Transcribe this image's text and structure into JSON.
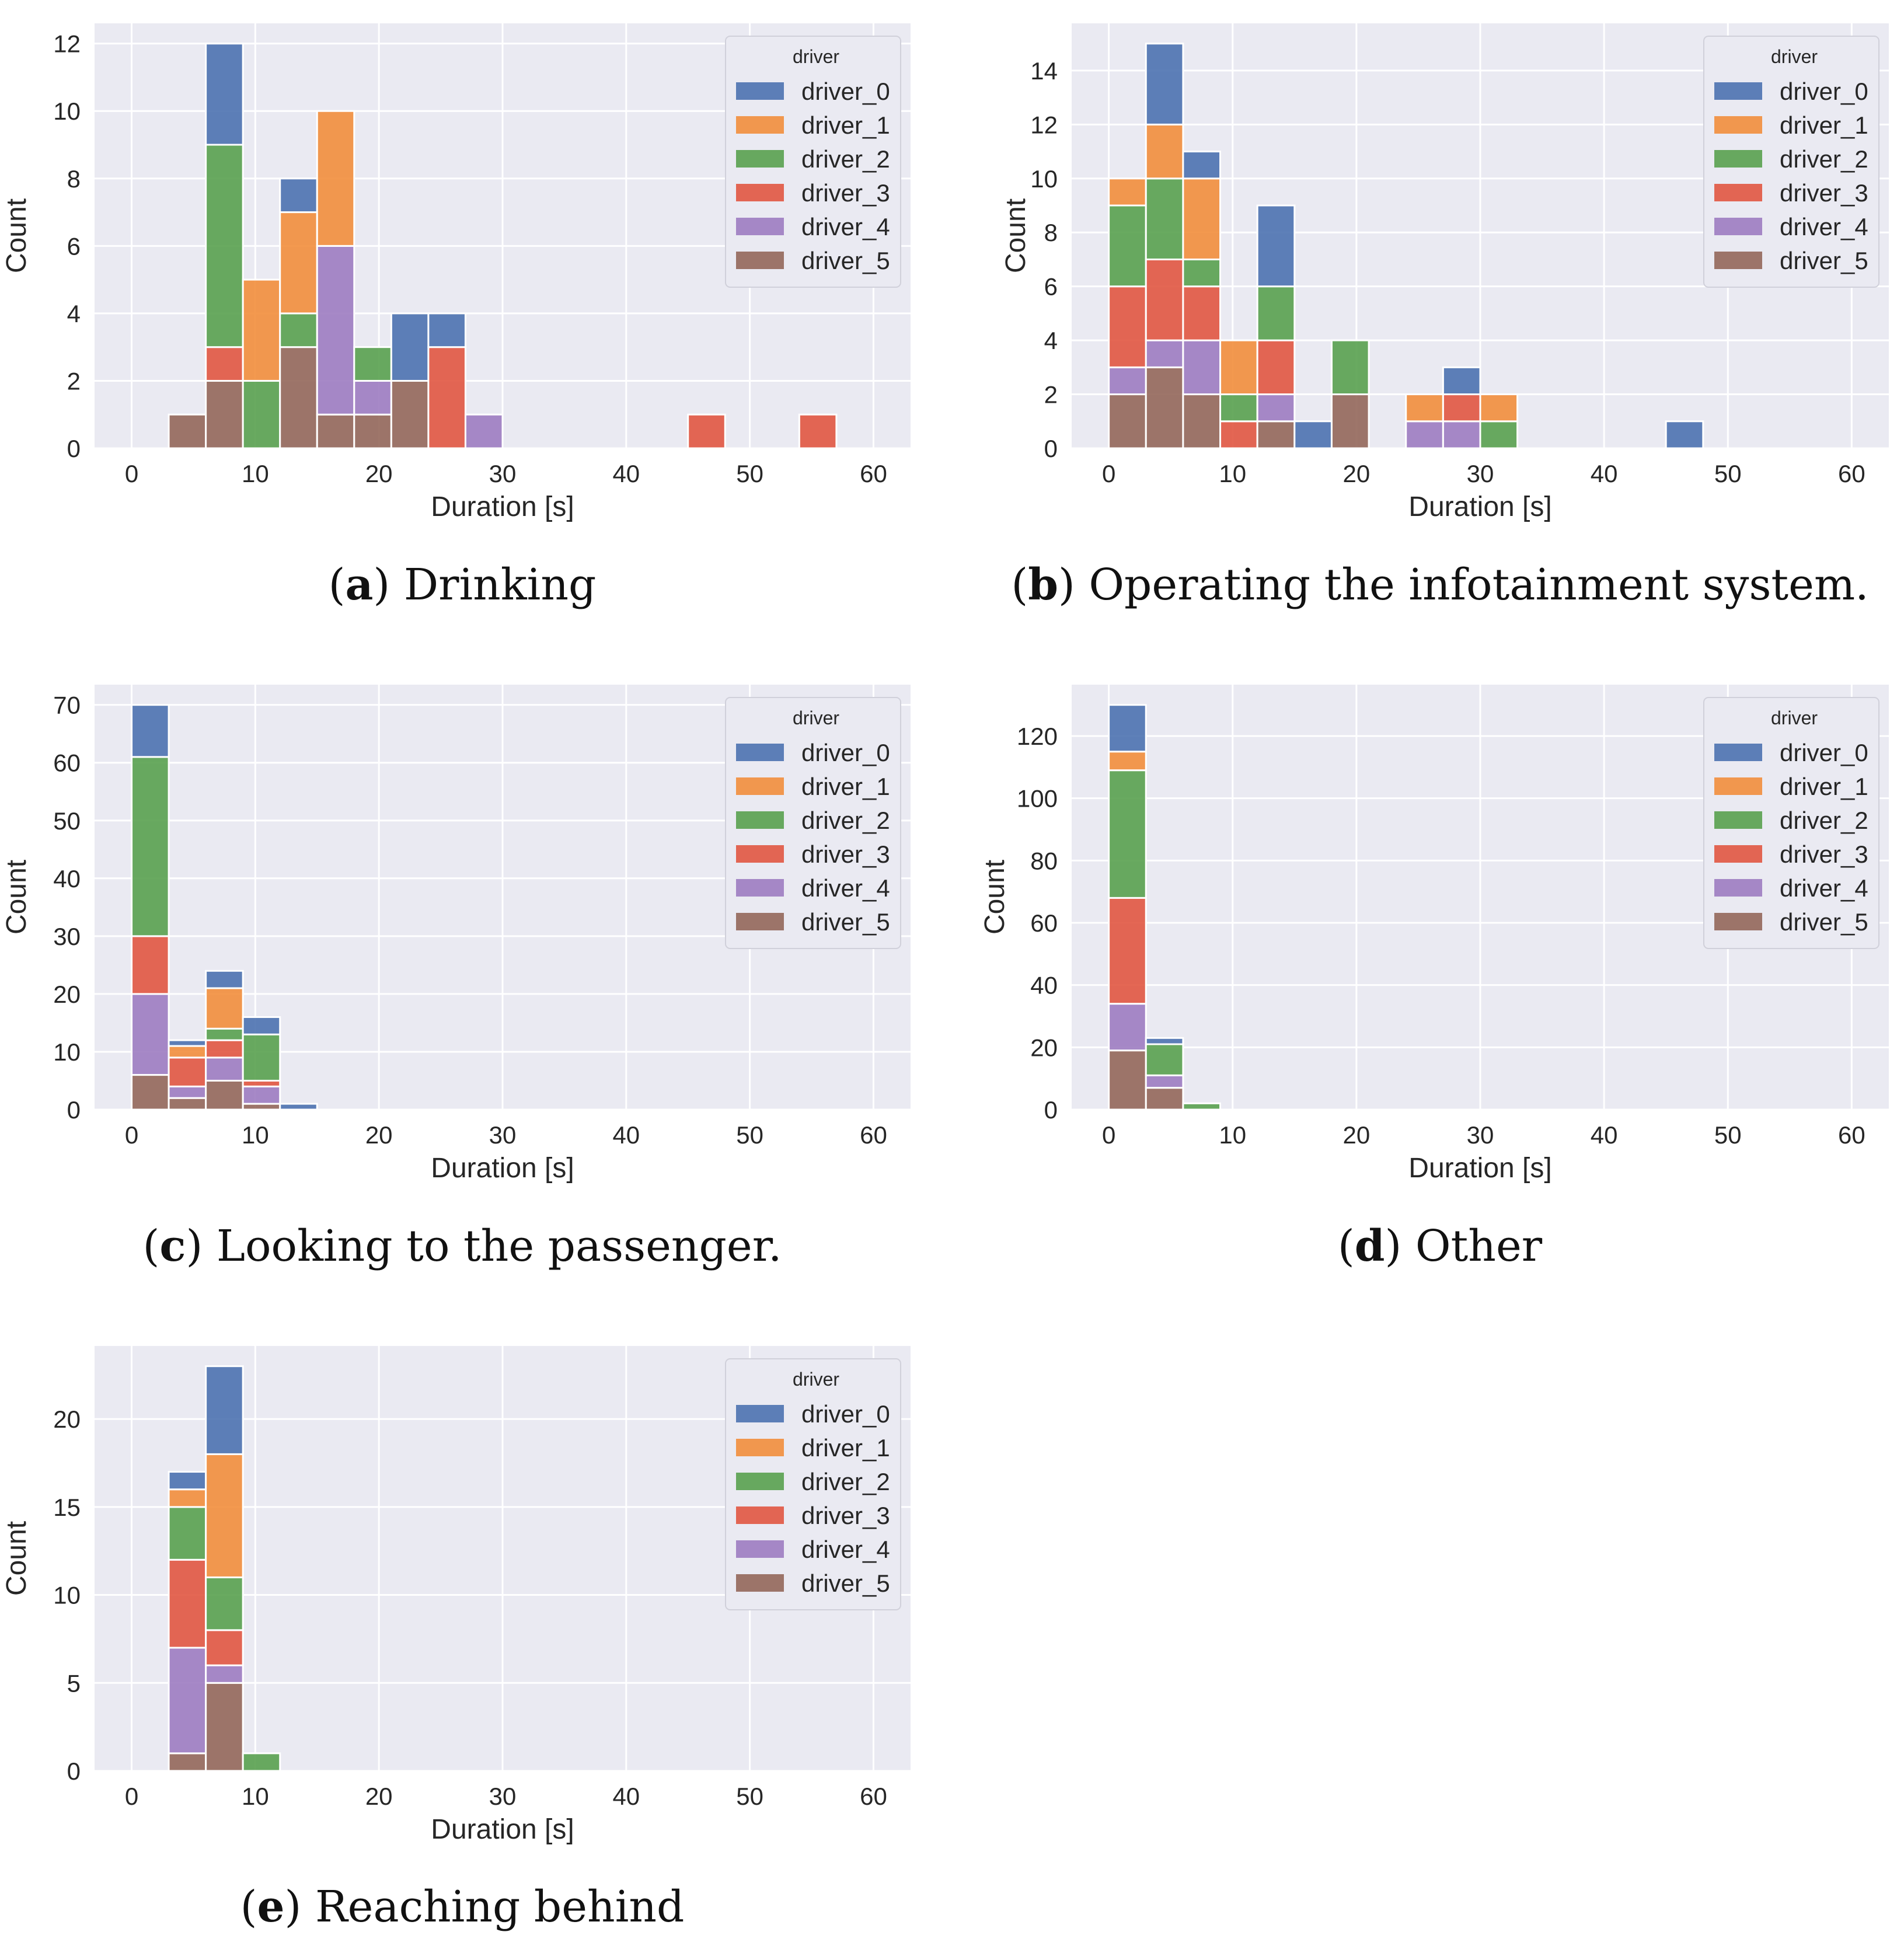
{
  "legend_title": "driver",
  "drivers": [
    "driver_0",
    "driver_1",
    "driver_2",
    "driver_3",
    "driver_4",
    "driver_5"
  ],
  "colors": [
    "#4c72b0",
    "#f28e3c",
    "#59a14f",
    "#e15741",
    "#9d7cc1",
    "#93675a"
  ],
  "chart_data": [
    {
      "type": "bar",
      "subtype": "stacked-histogram",
      "label": "a",
      "caption": "Drinking",
      "xlabel": "Duration [s]",
      "ylabel": "Count",
      "xlim": [
        -3,
        63
      ],
      "ylim": [
        0,
        12.6
      ],
      "xticks": [
        0,
        10,
        20,
        30,
        40,
        50,
        60
      ],
      "yticks": [
        0,
        2,
        4,
        6,
        8,
        10,
        12
      ],
      "bin_width": 3,
      "bins": [
        {
          "x0": 3,
          "counts": [
            0,
            0,
            0,
            0,
            0,
            1
          ]
        },
        {
          "x0": 6,
          "counts": [
            3,
            0,
            6,
            1,
            0,
            2
          ]
        },
        {
          "x0": 9,
          "counts": [
            0,
            3,
            2,
            0,
            0,
            0
          ]
        },
        {
          "x0": 12,
          "counts": [
            1,
            3,
            1,
            0,
            0,
            3
          ]
        },
        {
          "x0": 15,
          "counts": [
            0,
            4,
            0,
            0,
            5,
            1
          ]
        },
        {
          "x0": 18,
          "counts": [
            0,
            0,
            1,
            0,
            1,
            1
          ]
        },
        {
          "x0": 21,
          "counts": [
            2,
            0,
            0,
            0,
            0,
            2
          ]
        },
        {
          "x0": 24,
          "counts": [
            1,
            0,
            0,
            3,
            0,
            0
          ]
        },
        {
          "x0": 27,
          "counts": [
            0,
            0,
            0,
            0,
            1,
            0
          ]
        },
        {
          "x0": 45,
          "counts": [
            0,
            0,
            0,
            1,
            0,
            0
          ]
        },
        {
          "x0": 54,
          "counts": [
            0,
            0,
            0,
            1,
            0,
            0
          ]
        }
      ]
    },
    {
      "type": "bar",
      "subtype": "stacked-histogram",
      "label": "b",
      "caption": "Operating the infotainment system.",
      "xlabel": "Duration [s]",
      "ylabel": "Count",
      "xlim": [
        -3,
        63
      ],
      "ylim": [
        0,
        15.75
      ],
      "xticks": [
        0,
        10,
        20,
        30,
        40,
        50,
        60
      ],
      "yticks": [
        0,
        2,
        4,
        6,
        8,
        10,
        12,
        14
      ],
      "bin_width": 3,
      "bins": [
        {
          "x0": 0,
          "counts": [
            0,
            1,
            3,
            3,
            1,
            2
          ]
        },
        {
          "x0": 3,
          "counts": [
            3,
            2,
            3,
            3,
            1,
            3
          ]
        },
        {
          "x0": 6,
          "counts": [
            1,
            3,
            1,
            2,
            2,
            2
          ]
        },
        {
          "x0": 9,
          "counts": [
            0,
            2,
            1,
            1,
            0,
            0
          ]
        },
        {
          "x0": 12,
          "counts": [
            3,
            0,
            2,
            2,
            1,
            1
          ]
        },
        {
          "x0": 15,
          "counts": [
            1,
            0,
            0,
            0,
            0,
            0
          ]
        },
        {
          "x0": 18,
          "counts": [
            0,
            0,
            2,
            0,
            0,
            2
          ]
        },
        {
          "x0": 24,
          "counts": [
            0,
            1,
            0,
            0,
            1,
            0
          ]
        },
        {
          "x0": 27,
          "counts": [
            1,
            0,
            0,
            1,
            1,
            0
          ]
        },
        {
          "x0": 30,
          "counts": [
            0,
            1,
            1,
            0,
            0,
            0
          ]
        },
        {
          "x0": 45,
          "counts": [
            1,
            0,
            0,
            0,
            0,
            0
          ]
        }
      ]
    },
    {
      "type": "bar",
      "subtype": "stacked-histogram",
      "label": "c",
      "caption": "Looking to the passenger.",
      "xlabel": "Duration [s]",
      "ylabel": "Count",
      "xlim": [
        -3,
        63
      ],
      "ylim": [
        0,
        73.5
      ],
      "xticks": [
        0,
        10,
        20,
        30,
        40,
        50,
        60
      ],
      "yticks": [
        0,
        10,
        20,
        30,
        40,
        50,
        60,
        70
      ],
      "bin_width": 3,
      "bins": [
        {
          "x0": 0,
          "counts": [
            9,
            0,
            31,
            10,
            14,
            6
          ]
        },
        {
          "x0": 3,
          "counts": [
            1,
            2,
            0,
            5,
            2,
            2
          ]
        },
        {
          "x0": 6,
          "counts": [
            3,
            7,
            2,
            3,
            4,
            5
          ]
        },
        {
          "x0": 9,
          "counts": [
            3,
            0,
            8,
            1,
            3,
            1
          ]
        },
        {
          "x0": 12,
          "counts": [
            1,
            0,
            0,
            0,
            0,
            0
          ]
        }
      ]
    },
    {
      "type": "bar",
      "subtype": "stacked-histogram",
      "label": "d",
      "caption": "Other",
      "xlabel": "Duration [s]",
      "ylabel": "Count",
      "xlim": [
        -3,
        63
      ],
      "ylim": [
        0,
        136.5
      ],
      "xticks": [
        0,
        10,
        20,
        30,
        40,
        50,
        60
      ],
      "yticks": [
        0,
        20,
        40,
        60,
        80,
        100,
        120
      ],
      "bin_width": 3,
      "bins": [
        {
          "x0": 0,
          "counts": [
            15,
            6,
            41,
            34,
            15,
            19
          ]
        },
        {
          "x0": 3,
          "counts": [
            2,
            0,
            10,
            0,
            4,
            7
          ]
        },
        {
          "x0": 6,
          "counts": [
            0,
            0,
            2,
            0,
            0,
            0
          ]
        }
      ]
    },
    {
      "type": "bar",
      "subtype": "stacked-histogram",
      "label": "e",
      "caption": "Reaching behind",
      "xlabel": "Duration [s]",
      "ylabel": "Count",
      "xlim": [
        -3,
        63
      ],
      "ylim": [
        0,
        24.15
      ],
      "xticks": [
        0,
        10,
        20,
        30,
        40,
        50,
        60
      ],
      "yticks": [
        0,
        5,
        10,
        15,
        20
      ],
      "bin_width": 3,
      "bins": [
        {
          "x0": 3,
          "counts": [
            1,
            1,
            3,
            5,
            6,
            1
          ]
        },
        {
          "x0": 6,
          "counts": [
            5,
            7,
            3,
            2,
            1,
            5
          ]
        },
        {
          "x0": 9,
          "counts": [
            0,
            0,
            1,
            0,
            0,
            0
          ]
        }
      ]
    }
  ]
}
